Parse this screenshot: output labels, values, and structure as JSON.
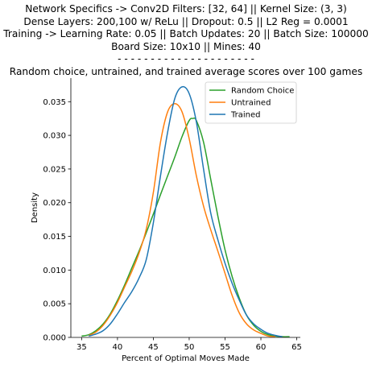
{
  "chart_data": {
    "type": "line",
    "title_lines": [
      "Network Specifics -> Conv2D Filters: [32, 64] || Kernel Size: (3, 3)",
      "Dense Layers: 200,100 w/ ReLu || Dropout: 0.5  || L2 Reg = 0.0001",
      "Training -> Learning Rate: 0.05 || Batch Updates: 20 || Batch Size: 100000",
      "Board Size: 10x10 || Mines: 40",
      "- - - - - - - - - - - - - - - - - - - - -",
      "Random choice, untrained, and trained average scores over 100 games"
    ],
    "xlabel": "Percent of Optimal Moves Made",
    "ylabel": "Density",
    "xlim": [
      33.5,
      65.5
    ],
    "ylim": [
      0,
      0.0385
    ],
    "xticks": [
      35,
      40,
      45,
      50,
      55,
      60,
      65
    ],
    "yticks": [
      0.0,
      0.005,
      0.01,
      0.015,
      0.02,
      0.025,
      0.03,
      0.035
    ],
    "ytick_labels": [
      "0.000",
      "0.005",
      "0.010",
      "0.015",
      "0.020",
      "0.025",
      "0.030",
      "0.035"
    ],
    "grid": false,
    "legend_position": "upper-right",
    "series": [
      {
        "name": "Random Choice",
        "color": "#2ca02c",
        "x": [
          35,
          36,
          37,
          38,
          39,
          40,
          41,
          42,
          43,
          44,
          45,
          46,
          47,
          48,
          49,
          50,
          50.5,
          51,
          52,
          53,
          54,
          55,
          56,
          57,
          58,
          59,
          60,
          61,
          62,
          63,
          64
        ],
        "y": [
          0.0002,
          0.0004,
          0.001,
          0.002,
          0.0035,
          0.0055,
          0.0078,
          0.0103,
          0.0128,
          0.0155,
          0.0183,
          0.0212,
          0.024,
          0.0268,
          0.0298,
          0.0322,
          0.0325,
          0.0322,
          0.029,
          0.0235,
          0.018,
          0.013,
          0.009,
          0.0058,
          0.0033,
          0.0018,
          0.0009,
          0.0004,
          0.0002,
          0.0001,
          0.0001
        ]
      },
      {
        "name": "Untrained",
        "color": "#ff7f0e",
        "x": [
          36,
          37,
          38,
          39,
          40,
          41,
          42,
          43,
          44,
          45,
          46,
          47,
          48,
          49,
          50,
          51,
          52,
          53,
          54,
          55,
          56,
          57,
          58,
          59,
          60,
          61,
          62
        ],
        "y": [
          0.0003,
          0.0008,
          0.0018,
          0.0033,
          0.0052,
          0.0075,
          0.0098,
          0.0125,
          0.016,
          0.0215,
          0.029,
          0.0335,
          0.0347,
          0.0335,
          0.0295,
          0.024,
          0.0195,
          0.016,
          0.0128,
          0.0095,
          0.0062,
          0.0036,
          0.002,
          0.0011,
          0.0006,
          0.0002,
          0.0001
        ]
      },
      {
        "name": "Trained",
        "color": "#1f77b4",
        "x": [
          36,
          37,
          38,
          39,
          40,
          41,
          42,
          43,
          44,
          45,
          46,
          47,
          48,
          49,
          50,
          51,
          52,
          53,
          54,
          55,
          56,
          57,
          58,
          59,
          60,
          61,
          62,
          63
        ],
        "y": [
          0.0002,
          0.0005,
          0.001,
          0.002,
          0.0035,
          0.0052,
          0.0068,
          0.0088,
          0.0115,
          0.017,
          0.024,
          0.0305,
          0.0355,
          0.0372,
          0.0362,
          0.032,
          0.025,
          0.0185,
          0.0145,
          0.011,
          0.008,
          0.0055,
          0.0033,
          0.002,
          0.0012,
          0.0006,
          0.0003,
          0.0001
        ]
      }
    ]
  }
}
